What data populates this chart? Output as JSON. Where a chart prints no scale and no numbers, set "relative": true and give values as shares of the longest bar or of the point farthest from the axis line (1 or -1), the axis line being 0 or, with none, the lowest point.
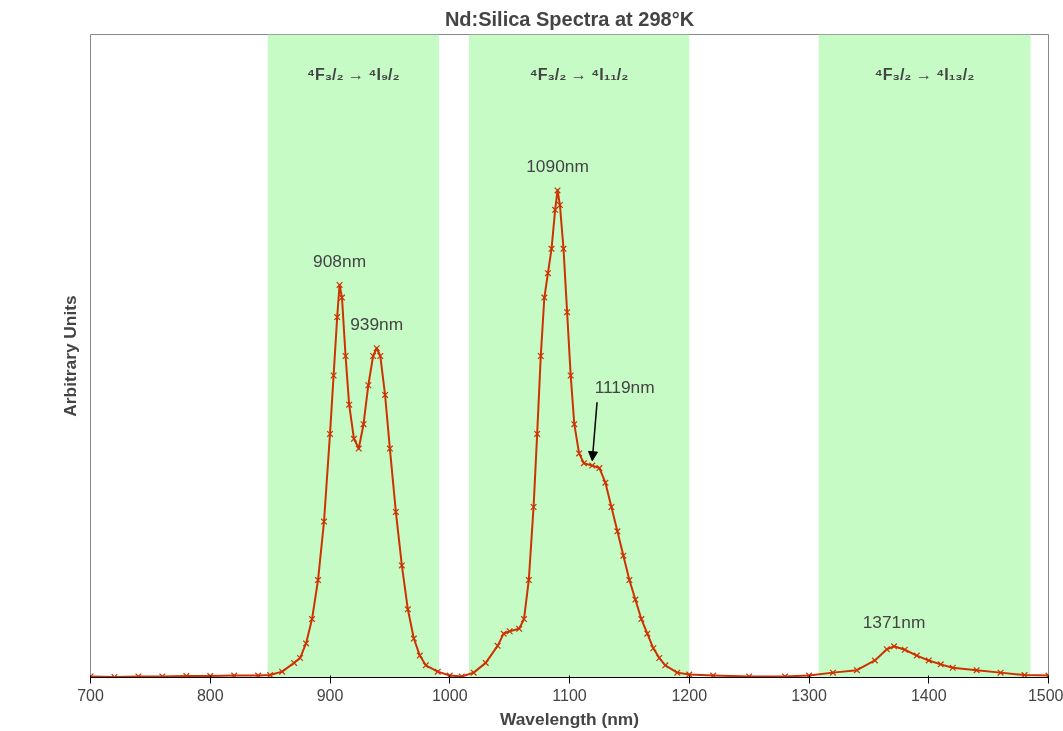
{
  "chart_data": {
    "type": "line",
    "title": "Nd:Silica Spectra at 298°K",
    "xlabel": "Wavelength (nm)",
    "ylabel": "Arbitrary Units",
    "relative": true,
    "marker": "cross",
    "line_style": "solid",
    "grid": false,
    "xlim": [
      700,
      1500
    ],
    "xticks": [
      700,
      800,
      900,
      1000,
      1100,
      1200,
      1300,
      1400,
      1500
    ],
    "x": [
      700,
      720,
      740,
      760,
      780,
      800,
      820,
      840,
      850,
      860,
      870,
      875,
      880,
      885,
      890,
      895,
      900,
      903,
      906,
      908,
      910,
      913,
      916,
      920,
      924,
      928,
      932,
      936,
      939,
      942,
      946,
      950,
      955,
      960,
      965,
      970,
      975,
      980,
      990,
      1000,
      1010,
      1020,
      1030,
      1040,
      1045,
      1050,
      1058,
      1062,
      1066,
      1070,
      1073,
      1076,
      1079,
      1082,
      1085,
      1088,
      1090,
      1092,
      1095,
      1098,
      1101,
      1104,
      1108,
      1112,
      1119,
      1125,
      1130,
      1135,
      1140,
      1145,
      1150,
      1155,
      1160,
      1165,
      1170,
      1175,
      1180,
      1190,
      1200,
      1220,
      1250,
      1280,
      1300,
      1320,
      1340,
      1355,
      1365,
      1371,
      1380,
      1390,
      1400,
      1410,
      1420,
      1440,
      1460,
      1480,
      1500
    ],
    "series": [
      {
        "color": "#cc3300",
        "values": [
          0.002,
          0.001,
          0.002,
          0.002,
          0.003,
          0.003,
          0.004,
          0.004,
          0.005,
          0.012,
          0.03,
          0.04,
          0.07,
          0.12,
          0.2,
          0.32,
          0.5,
          0.62,
          0.74,
          0.806,
          0.78,
          0.66,
          0.56,
          0.49,
          0.47,
          0.52,
          0.6,
          0.66,
          0.676,
          0.66,
          0.58,
          0.47,
          0.34,
          0.23,
          0.14,
          0.08,
          0.045,
          0.025,
          0.012,
          0.004,
          0.002,
          0.01,
          0.03,
          0.065,
          0.09,
          0.095,
          0.1,
          0.12,
          0.2,
          0.35,
          0.5,
          0.66,
          0.78,
          0.83,
          0.88,
          0.96,
          1.0,
          0.97,
          0.88,
          0.75,
          0.62,
          0.52,
          0.46,
          0.44,
          0.435,
          0.43,
          0.4,
          0.35,
          0.3,
          0.25,
          0.2,
          0.16,
          0.12,
          0.09,
          0.06,
          0.04,
          0.025,
          0.01,
          0.006,
          0.004,
          0.002,
          0.002,
          0.004,
          0.01,
          0.015,
          0.035,
          0.058,
          0.064,
          0.057,
          0.045,
          0.035,
          0.027,
          0.02,
          0.015,
          0.01,
          0.005,
          0.004
        ]
      }
    ],
    "bands": [
      {
        "axis": "x",
        "from": 848,
        "to": 991,
        "label": "⁴F₃/₂ → ⁴I₉/₂",
        "color": "#c6fbc6"
      },
      {
        "axis": "x",
        "from": 1016,
        "to": 1200,
        "label": "⁴F₃/₂ → ⁴I₁₁/₂",
        "color": "#c6fbc6"
      },
      {
        "axis": "x",
        "from": 1308,
        "to": 1485,
        "label": "⁴F₃/₂ → ⁴I₁₃/₂",
        "color": "#c6fbc6"
      }
    ],
    "annotations": [
      {
        "text": "908nm",
        "x": 908,
        "y": 0.806
      },
      {
        "text": "939nm",
        "x": 939,
        "y": 0.676
      },
      {
        "text": "1090nm",
        "x": 1090,
        "y": 1.0
      },
      {
        "text": "1119nm",
        "x": 1119,
        "y": 0.435
      },
      {
        "text": "1371nm",
        "x": 1371,
        "y": 0.064
      }
    ]
  }
}
